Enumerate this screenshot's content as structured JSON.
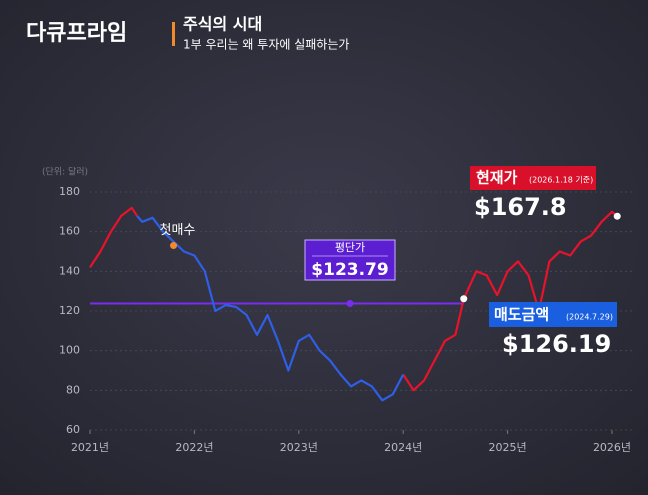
{
  "header": {
    "logo": "다큐프라임",
    "program": "주식의 시대",
    "episode": "1부 우리는 왜 투자에 실패하는가"
  },
  "chart_data": {
    "type": "line",
    "y_label": "(단위: 달러)",
    "x": [
      2021.0,
      2021.1,
      2021.2,
      2021.3,
      2021.4,
      2021.45,
      2021.5,
      2021.6,
      2021.7,
      2021.8,
      2021.9,
      2022.0,
      2022.1,
      2022.2,
      2022.3,
      2022.4,
      2022.5,
      2022.6,
      2022.7,
      2022.8,
      2022.9,
      2023.0,
      2023.1,
      2023.2,
      2023.3,
      2023.4,
      2023.5,
      2023.6,
      2023.7,
      2023.8,
      2023.9,
      2024.0,
      2024.1,
      2024.2,
      2024.3,
      2024.4,
      2024.5,
      2024.58,
      2024.7,
      2024.8,
      2024.9,
      2025.0,
      2025.1,
      2025.2,
      2025.3,
      2025.4,
      2025.5,
      2025.6,
      2025.7,
      2025.8,
      2025.9,
      2026.0,
      2026.05
    ],
    "series": [
      {
        "color": "#e8132b",
        "values": [
          142,
          150,
          160,
          168,
          172,
          168,
          null,
          null,
          null,
          null,
          null,
          null,
          null,
          null,
          null,
          null,
          null,
          null,
          null,
          null,
          null,
          null,
          null,
          null,
          null,
          null,
          null,
          null,
          null,
          null,
          null,
          88,
          80,
          85,
          95,
          105,
          108,
          126.19,
          140,
          138,
          128,
          140,
          145,
          138,
          120,
          145,
          150,
          148,
          155,
          158,
          165,
          170,
          167.8
        ]
      },
      {
        "color": "#2f5fe6",
        "values": [
          null,
          null,
          null,
          null,
          null,
          168,
          165,
          167,
          160,
          155,
          150,
          148,
          140,
          120,
          123,
          122,
          118,
          108,
          118,
          105,
          90,
          105,
          108,
          100,
          95,
          88,
          82,
          85,
          82,
          75,
          78,
          88,
          null,
          null,
          null,
          null,
          null,
          null,
          null,
          null,
          null,
          null,
          null,
          null,
          null,
          null,
          null,
          null,
          null,
          null,
          null,
          null,
          null
        ]
      }
    ],
    "xlim": [
      2021,
      2026
    ],
    "xticks": [
      {
        "value": 2021,
        "label": "2021년"
      },
      {
        "value": 2022,
        "label": "2022년"
      },
      {
        "value": 2023,
        "label": "2023년"
      },
      {
        "value": 2024,
        "label": "2024년"
      },
      {
        "value": 2025,
        "label": "2025년"
      },
      {
        "value": 2026,
        "label": "2026년"
      }
    ],
    "ylim": [
      60,
      180
    ],
    "yticks": [
      60,
      80,
      100,
      120,
      140,
      160,
      180
    ],
    "grid": true,
    "first_buy": {
      "label": "첫매수",
      "x": 2021.8,
      "y": 153,
      "color": "#f08a2a"
    },
    "average": {
      "label": "평단가",
      "value": 123.79,
      "value_label": "$123.79",
      "color": "#7b2cf0"
    },
    "sell": {
      "label": "매도금액",
      "date": "(2024.7.29)",
      "x": 2024.58,
      "y": 126.19,
      "value_label": "$126.19",
      "color": "#1a5fe0"
    },
    "current": {
      "label": "현재가",
      "date": "(2026.1.18 기준)",
      "x": 2026.05,
      "y": 167.8,
      "value_label": "$167.8",
      "color": "#d8102a"
    }
  }
}
